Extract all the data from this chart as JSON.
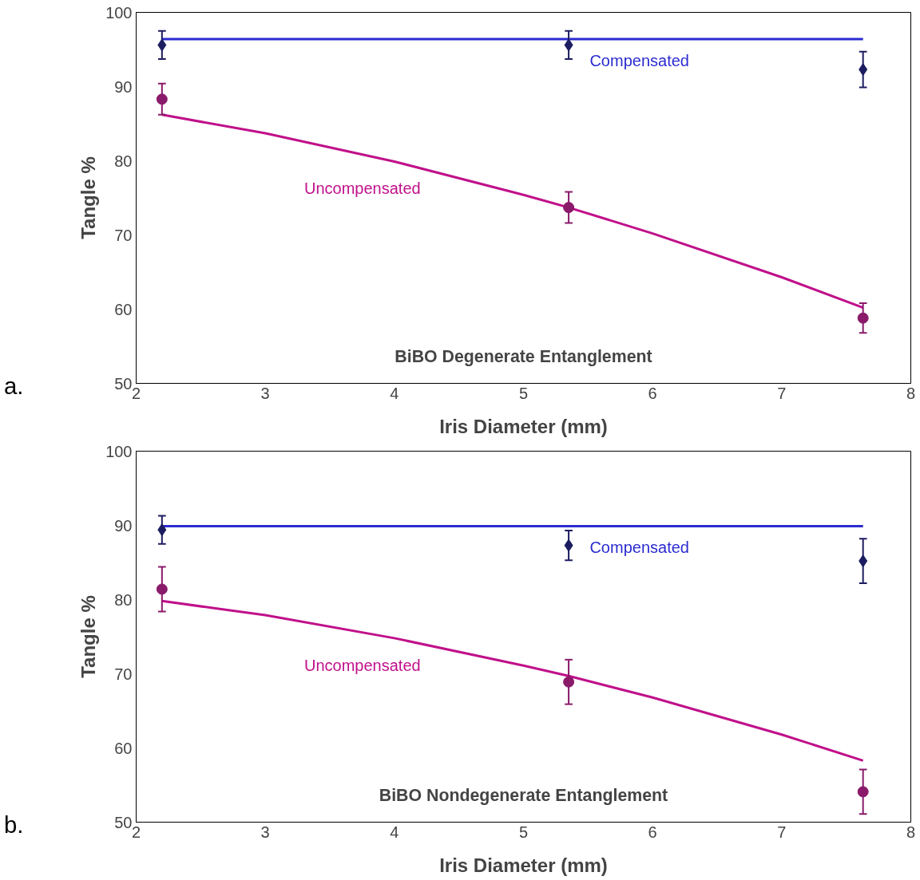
{
  "chart_data": [
    {
      "type": "scatter",
      "xlabel": "Iris Diameter (mm)",
      "ylabel": "Tangle %",
      "xlim": [
        2,
        8
      ],
      "xticks": [
        2,
        3,
        4,
        5,
        6,
        7,
        8
      ],
      "ylim": [
        50,
        100
      ],
      "yticks": [
        50,
        60,
        70,
        80,
        90,
        100
      ],
      "grid": false,
      "legend": false,
      "annotations": [
        "BiBO Degenerate Entanglement",
        "a."
      ],
      "series": [
        {
          "type": "line",
          "name": "Compensated",
          "color": "#2b2bd0",
          "x": [
            2.2,
            7.63
          ],
          "values": [
            96.4,
            96.4
          ],
          "marker": "none"
        },
        {
          "type": "line",
          "name": "Uncompensated",
          "color": "#c0108a",
          "x": [
            2.2,
            3,
            4,
            5,
            5.35,
            6,
            7,
            7.63
          ],
          "values": [
            86.2,
            83.7,
            79.9,
            75.4,
            73.7,
            70.2,
            64.3,
            60.2
          ],
          "marker": "none"
        },
        {
          "color": "#1c1c60",
          "x": [
            2.2,
            5.35,
            7.63
          ],
          "values": [
            95.6,
            95.6,
            92.3
          ],
          "errors": [
            1.9,
            1.9,
            2.4
          ],
          "marker": "diamond"
        },
        {
          "color": "#8a1a6a",
          "x": [
            2.2,
            5.35,
            7.63
          ],
          "values": [
            88.3,
            73.7,
            58.8
          ],
          "errors": [
            2.1,
            2.1,
            2.0
          ],
          "marker": "circle"
        }
      ]
    },
    {
      "type": "scatter",
      "xlabel": "Iris Diameter (mm)",
      "ylabel": "Tangle %",
      "xlim": [
        2,
        8
      ],
      "xticks": [
        2,
        3,
        4,
        5,
        6,
        7,
        8
      ],
      "ylim": [
        50,
        100
      ],
      "yticks": [
        50,
        60,
        70,
        80,
        90,
        100
      ],
      "grid": false,
      "legend": false,
      "annotations": [
        "BiBO Nondegenerate Entanglement",
        "b."
      ],
      "series": [
        {
          "type": "line",
          "name": "Compensated",
          "color": "#2b2bd0",
          "x": [
            2.2,
            7.63
          ],
          "values": [
            89.9,
            89.9
          ],
          "marker": "none"
        },
        {
          "type": "line",
          "name": "Uncompensated",
          "color": "#c0108a",
          "x": [
            2.2,
            3,
            4,
            5,
            5.35,
            6,
            7,
            7.63
          ],
          "values": [
            79.8,
            77.9,
            74.8,
            71.1,
            69.7,
            66.8,
            61.8,
            58.3
          ],
          "marker": "none"
        },
        {
          "color": "#1c1c60",
          "x": [
            2.2,
            5.35,
            7.63
          ],
          "values": [
            89.4,
            87.3,
            85.2
          ],
          "errors": [
            1.9,
            2.0,
            3.0
          ],
          "marker": "diamond"
        },
        {
          "color": "#8a1a6a",
          "x": [
            2.2,
            5.35,
            7.63
          ],
          "values": [
            81.4,
            68.9,
            54.1
          ],
          "errors": [
            3.0,
            3.0,
            3.0
          ],
          "marker": "circle"
        }
      ]
    }
  ]
}
